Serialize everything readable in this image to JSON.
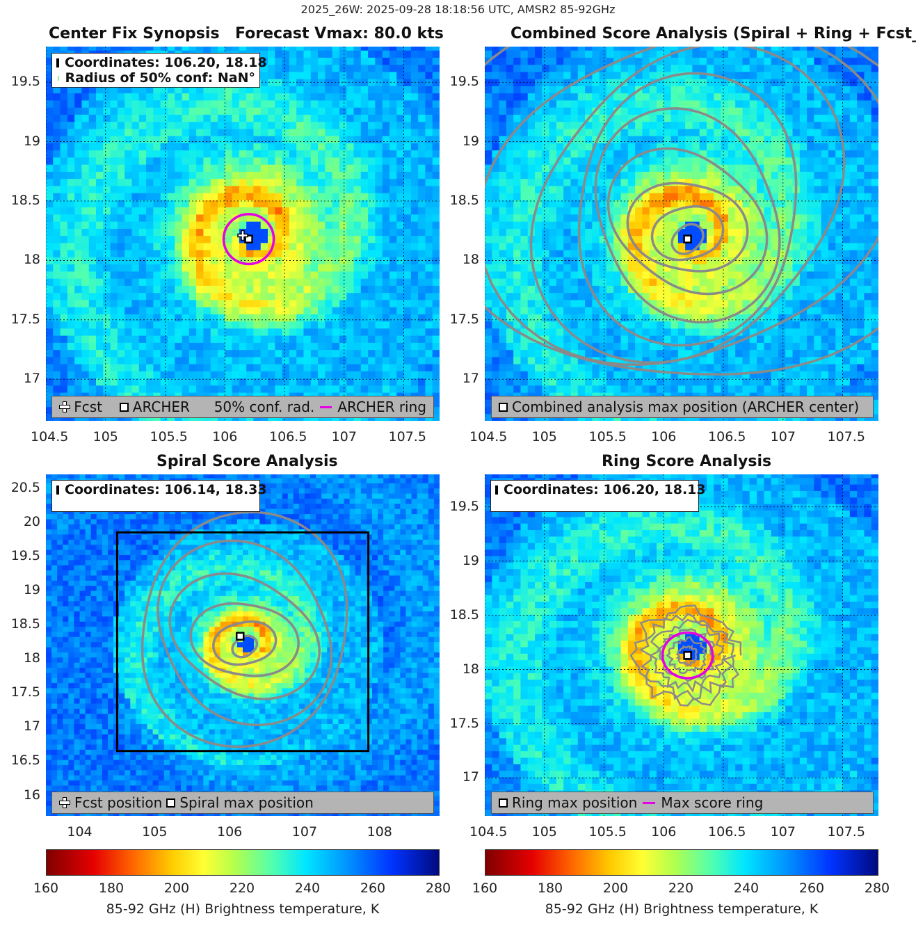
{
  "suptitle": "2025_26W: 2025-09-28 18:18:56 UTC, AMSR2 85-92GHz",
  "chart_data": [
    {
      "type": "heatmap",
      "panel": "top-left",
      "title": "Center Fix Synopsis",
      "title_right": "Forecast Vmax: 80.0 kts",
      "x_ticks": [
        "104.5",
        "105",
        "105.5",
        "106",
        "106.5",
        "107",
        "107.5"
      ],
      "y_ticks": [
        "19.5",
        "19",
        "18.5",
        "18",
        "17.5",
        "17"
      ],
      "xlim": [
        104.5,
        107.8
      ],
      "ylim": [
        16.65,
        19.8
      ],
      "grid": true,
      "legend_lines": [
        "Coordinates: 106.20, 18.18",
        "Radius of 50% conf: NaN°"
      ],
      "bottom_legend": [
        "Fcst",
        "ARCHER",
        "50% conf. rad.",
        "ARCHER ring"
      ],
      "archer_center": [
        106.2,
        18.18
      ],
      "fcst_position": [
        106.15,
        18.21
      ],
      "ring_radius_deg": 0.21
    },
    {
      "type": "heatmap",
      "panel": "top-right",
      "title": "Combined Score Analysis (Spiral + Ring + Fcst_Pe",
      "x_ticks": [
        "104.5",
        "105",
        "105.5",
        "106",
        "106.5",
        "107",
        "107.5"
      ],
      "y_ticks": [
        "19.5",
        "19",
        "18.5",
        "18",
        "17.5",
        "17"
      ],
      "xlim": [
        104.5,
        107.8
      ],
      "ylim": [
        16.65,
        19.8
      ],
      "grid": true,
      "bottom_legend": [
        "Combined analysis max position (ARCHER center)"
      ],
      "max_position": [
        106.2,
        18.18
      ]
    },
    {
      "type": "heatmap",
      "panel": "bottom-left",
      "title": "Spiral Score Analysis",
      "x_ticks": [
        "104",
        "105",
        "106",
        "107",
        "108"
      ],
      "y_ticks": [
        "20.5",
        "20",
        "19.5",
        "19",
        "18.5",
        "18",
        "17.5",
        "17",
        "16.5",
        "16"
      ],
      "xlim": [
        103.55,
        108.8
      ],
      "ylim": [
        15.7,
        20.7
      ],
      "grid": false,
      "legend_lines": [
        "Coordinates: 106.14, 18.33"
      ],
      "bottom_legend": [
        "Fcst position",
        "Spiral max position"
      ],
      "max_position": [
        106.14,
        18.33
      ]
    },
    {
      "type": "heatmap",
      "panel": "bottom-right",
      "title": "Ring Score Analysis",
      "x_ticks": [
        "104.5",
        "105",
        "105.5",
        "106",
        "106.5",
        "107",
        "107.5"
      ],
      "y_ticks": [
        "19.5",
        "19",
        "18.5",
        "18",
        "17.5",
        "17"
      ],
      "xlim": [
        104.5,
        107.8
      ],
      "ylim": [
        16.65,
        19.8
      ],
      "grid": true,
      "legend_lines": [
        "Coordinates: 106.20, 18.13"
      ],
      "bottom_legend": [
        "Ring max position",
        "Max score ring"
      ],
      "max_position": [
        106.2,
        18.13
      ],
      "ring_radius_deg": 0.21
    }
  ],
  "colorbars": [
    {
      "ticks": [
        "160",
        "180",
        "200",
        "220",
        "240",
        "260",
        "280"
      ],
      "label": "85-92 GHz (H) Brightness temperature, K"
    },
    {
      "ticks": [
        "160",
        "180",
        "200",
        "220",
        "240",
        "260",
        "280"
      ],
      "label": "85-92 GHz (H) Brightness temperature, K"
    }
  ],
  "colors": {
    "ring": "#e600e6",
    "contour": "#8a8a8a",
    "legend_bg": "#b4b4b4"
  }
}
